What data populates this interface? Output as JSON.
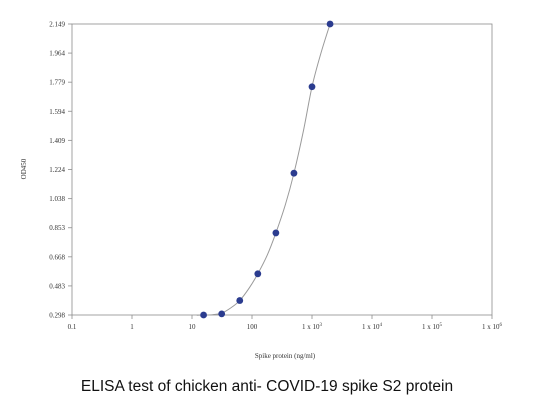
{
  "caption": "ELISA test of chicken anti- COVID-19 spike S2 protein",
  "chart_data": {
    "type": "scatter",
    "title": "",
    "xlabel": "Spike protein (ng/ml)",
    "ylabel": "OD450",
    "x_scale": "log",
    "xlim": [
      0.1,
      1000000
    ],
    "ylim": [
      0.298,
      2.149
    ],
    "x_ticks": [
      {
        "value": 0.1,
        "label": "0.1"
      },
      {
        "value": 1,
        "label": "1"
      },
      {
        "value": 10,
        "label": "10"
      },
      {
        "value": 100,
        "label": "100"
      },
      {
        "value": 1000,
        "label_base": "1 x 10",
        "label_exp": "3"
      },
      {
        "value": 10000,
        "label_base": "1 x 10",
        "label_exp": "4"
      },
      {
        "value": 100000,
        "label_base": "1 x 10",
        "label_exp": "5"
      },
      {
        "value": 1000000,
        "label_base": "1 x 10",
        "label_exp": "6"
      }
    ],
    "y_ticks": [
      {
        "value": 0.298,
        "label": "0.298"
      },
      {
        "value": 0.483,
        "label": "0.483"
      },
      {
        "value": 0.668,
        "label": "0.668"
      },
      {
        "value": 0.853,
        "label": "0.853"
      },
      {
        "value": 1.038,
        "label": "1.038"
      },
      {
        "value": 1.224,
        "label": "1.224"
      },
      {
        "value": 1.409,
        "label": "1.409"
      },
      {
        "value": 1.594,
        "label": "1.594"
      },
      {
        "value": 1.779,
        "label": "1.779"
      },
      {
        "value": 1.964,
        "label": "1.964"
      },
      {
        "value": 2.149,
        "label": "2.149"
      }
    ],
    "grid": false,
    "series": [
      {
        "color": "#2b3c8f",
        "line_color": "#9a9a9a",
        "points": [
          {
            "x": 15.6,
            "y": 0.298
          },
          {
            "x": 31.25,
            "y": 0.305
          },
          {
            "x": 62.5,
            "y": 0.39
          },
          {
            "x": 125,
            "y": 0.56
          },
          {
            "x": 250,
            "y": 0.82
          },
          {
            "x": 500,
            "y": 1.2
          },
          {
            "x": 1000,
            "y": 1.75
          },
          {
            "x": 2000,
            "y": 2.149
          }
        ],
        "fit_curve": [
          {
            "x": 12,
            "y": 0.296
          },
          {
            "x": 15.6,
            "y": 0.298
          },
          {
            "x": 22,
            "y": 0.3
          },
          {
            "x": 31.25,
            "y": 0.31
          },
          {
            "x": 45,
            "y": 0.345
          },
          {
            "x": 62.5,
            "y": 0.39
          },
          {
            "x": 90,
            "y": 0.47
          },
          {
            "x": 125,
            "y": 0.56
          },
          {
            "x": 180,
            "y": 0.68
          },
          {
            "x": 250,
            "y": 0.82
          },
          {
            "x": 360,
            "y": 1.0
          },
          {
            "x": 500,
            "y": 1.2
          },
          {
            "x": 720,
            "y": 1.47
          },
          {
            "x": 1000,
            "y": 1.75
          },
          {
            "x": 1400,
            "y": 1.96
          },
          {
            "x": 2000,
            "y": 2.149
          }
        ]
      }
    ]
  }
}
